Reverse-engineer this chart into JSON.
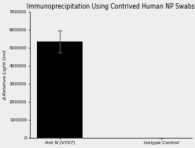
{
  "title": "Immunoprecipitation Using Contrived Human NP Swabs",
  "categories": [
    "Anti N (VYS7)",
    "Isotype Control"
  ],
  "values": [
    535000,
    2000
  ],
  "errors": [
    60000,
    800
  ],
  "bar_color": "#000000",
  "ylabel": "Δ Relative Light Unit",
  "ylim": [
    0,
    700000
  ],
  "yticks": [
    0,
    100000,
    200000,
    300000,
    400000,
    500000,
    600000,
    700000
  ],
  "ytick_labels": [
    "0",
    "100000",
    "200000",
    "300000",
    "400000",
    "500000",
    "600000",
    "700000"
  ],
  "background_color": "#eeeeee",
  "title_fontsize": 5.5,
  "label_fontsize": 4.5,
  "tick_fontsize": 4.2,
  "bar_width": 0.45,
  "error_capsize": 2
}
